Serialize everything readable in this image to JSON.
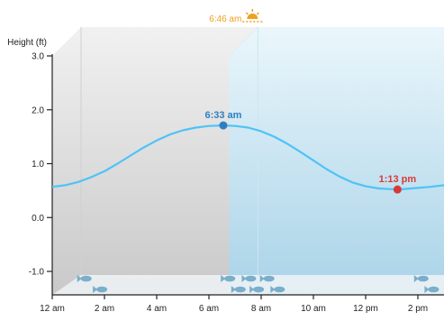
{
  "chart_data": {
    "type": "line",
    "ylabel": "Height (ft)",
    "ylim": [
      -1.5,
      3.0
    ],
    "y_ticks": [
      3.0,
      2.0,
      1.0,
      0.0,
      -1.0
    ],
    "y_tick_labels": [
      "3.0",
      "2.0",
      "1.0",
      "0.0",
      "-1.0"
    ],
    "xlim_hours": [
      0,
      15.0
    ],
    "x_ticks_hours": [
      0,
      2,
      4,
      6,
      8,
      10,
      12,
      14
    ],
    "x_tick_labels": [
      "12 am",
      "2 am",
      "4 am",
      "6 am",
      "8 am",
      "10 am",
      "12 pm",
      "2 pm"
    ],
    "series": [
      {
        "color": "#4fc3f7",
        "x_hours": [
          0,
          0.5,
          1,
          1.5,
          2,
          2.5,
          3,
          3.5,
          4,
          4.5,
          5,
          5.5,
          6,
          6.55,
          7,
          7.5,
          8,
          8.5,
          9,
          9.5,
          10,
          10.5,
          11,
          11.5,
          12,
          12.5,
          13.22,
          13.5,
          14,
          14.5,
          15
        ],
        "y_ft": [
          0.57,
          0.6,
          0.66,
          0.75,
          0.86,
          1.0,
          1.15,
          1.3,
          1.43,
          1.54,
          1.62,
          1.67,
          1.7,
          1.71,
          1.7,
          1.67,
          1.6,
          1.5,
          1.37,
          1.22,
          1.06,
          0.9,
          0.76,
          0.65,
          0.58,
          0.54,
          0.52,
          0.53,
          0.55,
          0.57,
          0.6
        ]
      }
    ],
    "annotations": [
      {
        "label": "6:33 am",
        "kind": "high",
        "x_hours": 6.55,
        "y_ft": 1.71,
        "color": "#2e7fc1"
      },
      {
        "label": "1:13 pm",
        "kind": "low",
        "x_hours": 13.22,
        "y_ft": 0.52,
        "color": "#d63a3a"
      }
    ],
    "sunrise": {
      "label": "6:46 am",
      "x_hours": 6.77,
      "color": "#f0a020"
    },
    "night_region": {
      "from_hours": 0,
      "to_hours": 6.77,
      "color": "#d8d8d8"
    },
    "day_region": {
      "from_hours": 6.77,
      "to_hours": 15.0,
      "color": "#bcdff0"
    },
    "fish_marker_hours": [
      1.3,
      1.9,
      6.8,
      7.2,
      7.6,
      7.9,
      8.3,
      8.7,
      14.2,
      14.6
    ],
    "grid": false,
    "legend": "none"
  }
}
